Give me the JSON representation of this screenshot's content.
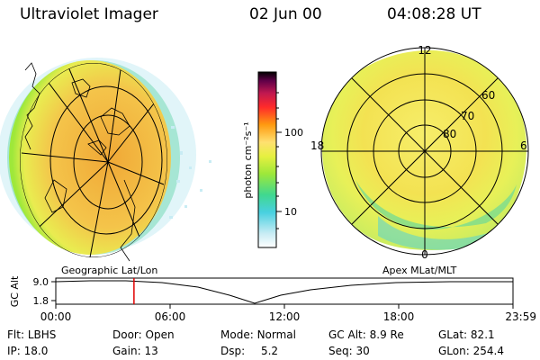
{
  "header": {
    "title": "Ultraviolet Imager",
    "date": "02 Jun 00",
    "time": "04:08:28 UT"
  },
  "colorbar": {
    "unit_label": "photon cm⁻²s⁻¹",
    "ticks": [
      "100",
      "10"
    ],
    "colors": [
      "#ffffff",
      "#c8ecf4",
      "#48d0e0",
      "#40d890",
      "#9ee83a",
      "#e6f040",
      "#ffe070",
      "#ff9a10",
      "#ff2a2a",
      "#c01850",
      "#600048",
      "#000000"
    ]
  },
  "left_panel": {
    "label": "Geographic Lat/Lon"
  },
  "right_panel": {
    "label": "Apex MLat/MLT",
    "mlt_labels": [
      "12",
      "18",
      "6",
      "0"
    ],
    "lat_labels": [
      "60",
      "70",
      "80"
    ]
  },
  "timeline": {
    "ylabel": "GC Alt",
    "y_ticks": [
      "9.0",
      "1.8"
    ],
    "x_ticks": [
      "00:00",
      "06:00",
      "12:00",
      "18:00",
      "23:59"
    ],
    "current_time_fraction": 0.171
  },
  "info": {
    "row1": [
      {
        "key": "Flt:",
        "val": "LBHS"
      },
      {
        "key": "Door:",
        "val": "Open"
      },
      {
        "key": "Mode:",
        "val": "Normal"
      },
      {
        "key": "GC Alt:",
        "val": "8.9 Re"
      },
      {
        "key": "GLat:",
        "val": "82.1"
      }
    ],
    "row2": [
      {
        "key": "IP:",
        "val": "18.0"
      },
      {
        "key": "Gain:",
        "val": "13"
      },
      {
        "key": "Dsp:",
        "val": "5.2"
      },
      {
        "key": "Seq:",
        "val": "30"
      },
      {
        "key": "GLon:",
        "val": "254.4"
      }
    ]
  }
}
